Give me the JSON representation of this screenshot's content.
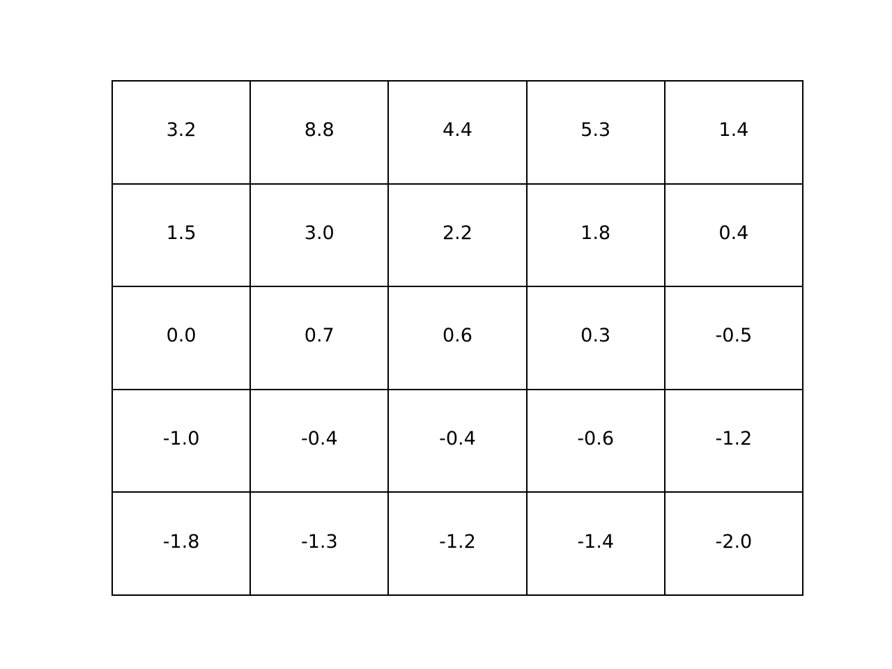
{
  "chart_data": {
    "type": "table",
    "rows": [
      [
        "3.2",
        "8.8",
        "4.4",
        "5.3",
        "1.4"
      ],
      [
        "1.5",
        "3.0",
        "2.2",
        "1.8",
        "0.4"
      ],
      [
        "0.0",
        "0.7",
        "0.6",
        "0.3",
        "-0.5"
      ],
      [
        "-1.0",
        "-0.4",
        "-0.4",
        "-0.6",
        "-1.2"
      ],
      [
        "-1.8",
        "-1.3",
        "-1.2",
        "-1.4",
        "-2.0"
      ]
    ]
  }
}
